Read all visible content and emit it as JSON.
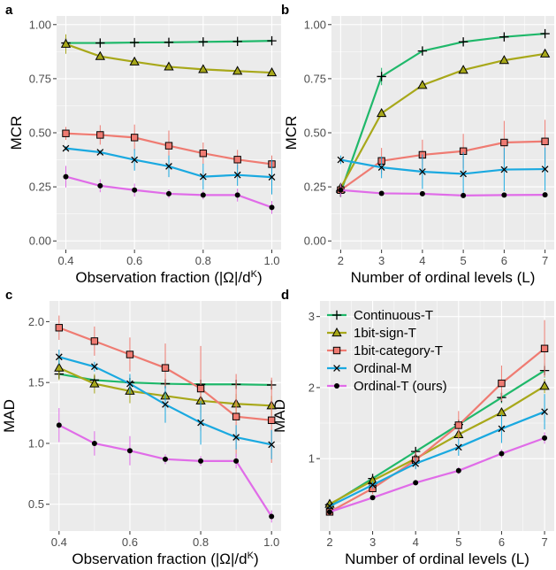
{
  "colors": {
    "Continuous-T": "#1fb86a",
    "1bit-sign-T": "#a8a81a",
    "1bit-category-T": "#ef7b72",
    "Ordinal-M": "#1aa9e0",
    "Ordinal-T (ours)": "#e06ce8"
  },
  "legend": {
    "panel": "d",
    "entries": [
      "Continuous-T",
      "1bit-sign-T",
      "1bit-category-T",
      "Ordinal-M",
      "Ordinal-T (ours)"
    ]
  },
  "chart_data": [
    {
      "panel": "a",
      "type": "line",
      "xlabel": "Observation fraction (|Ω|/d^K)",
      "ylabel": "MCR",
      "xlim": [
        0.4,
        1.0
      ],
      "ylim": [
        0.0,
        1.0
      ],
      "xticks": [
        0.4,
        0.6,
        0.8,
        1.0
      ],
      "xtick_labels": [
        "0.4",
        "0.6",
        "0.8",
        "1.0"
      ],
      "yticks": [
        0.0,
        0.25,
        0.5,
        0.75,
        1.0
      ],
      "ytick_labels": [
        "0.00",
        "0.25",
        "0.50",
        "0.75",
        "1.00"
      ],
      "x": [
        0.4,
        0.5,
        0.6,
        0.7,
        0.8,
        0.9,
        1.0
      ],
      "series": [
        {
          "name": "Continuous-T",
          "marker": "plus",
          "values": [
            0.915,
            0.915,
            0.917,
            0.918,
            0.92,
            0.922,
            0.925
          ],
          "err": [
            0.01,
            0.01,
            0.01,
            0.01,
            0.01,
            0.01,
            0.01
          ]
        },
        {
          "name": "1bit-sign-T",
          "marker": "triangle",
          "values": [
            0.91,
            0.853,
            0.828,
            0.805,
            0.793,
            0.785,
            0.778
          ],
          "err": [
            0.045,
            0.01,
            0.01,
            0.01,
            0.01,
            0.01,
            0.01
          ]
        },
        {
          "name": "1bit-category-T",
          "marker": "square",
          "values": [
            0.497,
            0.49,
            0.478,
            0.44,
            0.405,
            0.376,
            0.355
          ],
          "err": [
            0.03,
            0.045,
            0.06,
            0.07,
            0.05,
            0.045,
            0.04
          ]
        },
        {
          "name": "Ordinal-M",
          "marker": "x",
          "values": [
            0.428,
            0.41,
            0.375,
            0.345,
            0.297,
            0.305,
            0.295
          ],
          "err": [
            0.01,
            0.01,
            0.05,
            0.05,
            0.06,
            0.05,
            0.08
          ]
        },
        {
          "name": "Ordinal-T (ours)",
          "marker": "dot",
          "values": [
            0.297,
            0.255,
            0.235,
            0.218,
            0.212,
            0.212,
            0.155
          ],
          "err": [
            0.05,
            0.03,
            0.03,
            0.02,
            0.02,
            0.03,
            0.03
          ]
        }
      ]
    },
    {
      "panel": "b",
      "type": "line",
      "xlabel": "Number of ordinal levels (L)",
      "ylabel": "MCR",
      "xlim": [
        2,
        7
      ],
      "ylim": [
        0.0,
        1.0
      ],
      "xticks": [
        2,
        3,
        4,
        5,
        6,
        7
      ],
      "xtick_labels": [
        "2",
        "3",
        "4",
        "5",
        "6",
        "7"
      ],
      "yticks": [
        0.0,
        0.25,
        0.5,
        0.75,
        1.0
      ],
      "ytick_labels": [
        "0.00",
        "0.25",
        "0.50",
        "0.75",
        "1.00"
      ],
      "x": [
        2,
        3,
        4,
        5,
        6,
        7
      ],
      "series": [
        {
          "name": "Continuous-T",
          "marker": "plus",
          "values": [
            0.225,
            0.76,
            0.878,
            0.92,
            0.943,
            0.958
          ],
          "err": [
            0.02,
            0.04,
            0.02,
            0.01,
            0.01,
            0.01
          ]
        },
        {
          "name": "1bit-sign-T",
          "marker": "triangle",
          "values": [
            0.245,
            0.59,
            0.72,
            0.79,
            0.835,
            0.865
          ],
          "err": [
            0.02,
            0.01,
            0.01,
            0.01,
            0.01,
            0.01
          ]
        },
        {
          "name": "1bit-category-T",
          "marker": "square",
          "values": [
            0.235,
            0.37,
            0.398,
            0.415,
            0.455,
            0.46
          ],
          "err": [
            0.02,
            0.06,
            0.07,
            0.08,
            0.1,
            0.1
          ]
        },
        {
          "name": "Ordinal-M",
          "marker": "x",
          "values": [
            0.375,
            0.34,
            0.32,
            0.31,
            0.33,
            0.332
          ],
          "err": [
            0.02,
            0.05,
            0.08,
            0.1,
            0.1,
            0.1
          ]
        },
        {
          "name": "Ordinal-T (ours)",
          "marker": "dot",
          "values": [
            0.235,
            0.22,
            0.218,
            0.21,
            0.212,
            0.213
          ],
          "err": [
            0.03,
            0.01,
            0.01,
            0.01,
            0.01,
            0.01
          ]
        }
      ]
    },
    {
      "panel": "c",
      "type": "line",
      "xlabel": "Observation fraction (|Ω|/d^K)",
      "ylabel": "MAD",
      "xlim": [
        0.4,
        1.0
      ],
      "ylim": [
        0.35,
        2.1
      ],
      "xticks": [
        0.4,
        0.6,
        0.8,
        1.0
      ],
      "xtick_labels": [
        "0.4",
        "0.6",
        "0.8",
        "1.0"
      ],
      "yticks": [
        0.5,
        1.0,
        1.5,
        2.0
      ],
      "ytick_labels": [
        "0.5",
        "1.0",
        "1.5",
        "2.0"
      ],
      "x": [
        0.4,
        0.5,
        0.6,
        0.7,
        0.8,
        0.9,
        1.0
      ],
      "series": [
        {
          "name": "Continuous-T",
          "marker": "plus",
          "values": [
            1.57,
            1.52,
            1.5,
            1.49,
            1.485,
            1.485,
            1.48
          ],
          "err": [
            0.04,
            0.03,
            0.02,
            0.02,
            0.02,
            0.02,
            0.02
          ]
        },
        {
          "name": "1bit-sign-T",
          "marker": "triangle",
          "values": [
            1.62,
            1.49,
            1.43,
            1.39,
            1.35,
            1.325,
            1.31
          ],
          "err": [
            0.1,
            0.08,
            0.1,
            0.12,
            0.1,
            0.08,
            0.08
          ]
        },
        {
          "name": "1bit-category-T",
          "marker": "square",
          "values": [
            1.95,
            1.84,
            1.73,
            1.62,
            1.45,
            1.22,
            1.19
          ],
          "err": [
            0.1,
            0.12,
            0.14,
            0.2,
            0.35,
            0.35,
            0.35
          ]
        },
        {
          "name": "Ordinal-M",
          "marker": "x",
          "values": [
            1.71,
            1.63,
            1.49,
            1.32,
            1.17,
            1.05,
            0.99
          ],
          "err": [
            0.06,
            0.04,
            0.08,
            0.15,
            0.18,
            0.1,
            0.12
          ]
        },
        {
          "name": "Ordinal-T (ours)",
          "marker": "dot",
          "values": [
            1.15,
            1.0,
            0.94,
            0.87,
            0.855,
            0.855,
            0.4
          ],
          "err": [
            0.14,
            0.1,
            0.12,
            0.04,
            0.04,
            0.06,
            0.05
          ]
        }
      ]
    },
    {
      "panel": "d",
      "type": "line",
      "xlabel": "Number of ordinal levels (L)",
      "ylabel": "MAD",
      "xlim": [
        2,
        7
      ],
      "ylim": [
        0.1,
        3.1
      ],
      "xticks": [
        2,
        3,
        4,
        5,
        6,
        7
      ],
      "xtick_labels": [
        "2",
        "3",
        "4",
        "5",
        "6",
        "7"
      ],
      "yticks": [
        1,
        2,
        3
      ],
      "ytick_labels": [
        "1",
        "2",
        "3"
      ],
      "x": [
        2,
        3,
        4,
        5,
        6,
        7
      ],
      "series": [
        {
          "name": "Continuous-T",
          "marker": "plus",
          "values": [
            0.35,
            0.72,
            1.1,
            1.48,
            1.86,
            2.24
          ],
          "err": [
            0.03,
            0.03,
            0.04,
            0.05,
            0.08,
            0.1
          ]
        },
        {
          "name": "1bit-sign-T",
          "marker": "triangle",
          "values": [
            0.36,
            0.69,
            1.0,
            1.34,
            1.65,
            2.02
          ],
          "err": [
            0.03,
            0.03,
            0.04,
            0.05,
            0.06,
            0.1
          ]
        },
        {
          "name": "1bit-category-T",
          "marker": "square",
          "values": [
            0.25,
            0.58,
            0.98,
            1.47,
            2.06,
            2.55
          ],
          "err": [
            0.03,
            0.08,
            0.12,
            0.2,
            0.25,
            0.4
          ]
        },
        {
          "name": "Ordinal-M",
          "marker": "x",
          "values": [
            0.33,
            0.63,
            0.93,
            1.16,
            1.42,
            1.66
          ],
          "err": [
            0.03,
            0.05,
            0.08,
            0.12,
            0.2,
            0.25
          ]
        },
        {
          "name": "Ordinal-T (ours)",
          "marker": "dot",
          "values": [
            0.25,
            0.45,
            0.66,
            0.83,
            1.07,
            1.29
          ],
          "err": [
            0.03,
            0.03,
            0.04,
            0.05,
            0.06,
            0.08
          ]
        }
      ]
    }
  ]
}
